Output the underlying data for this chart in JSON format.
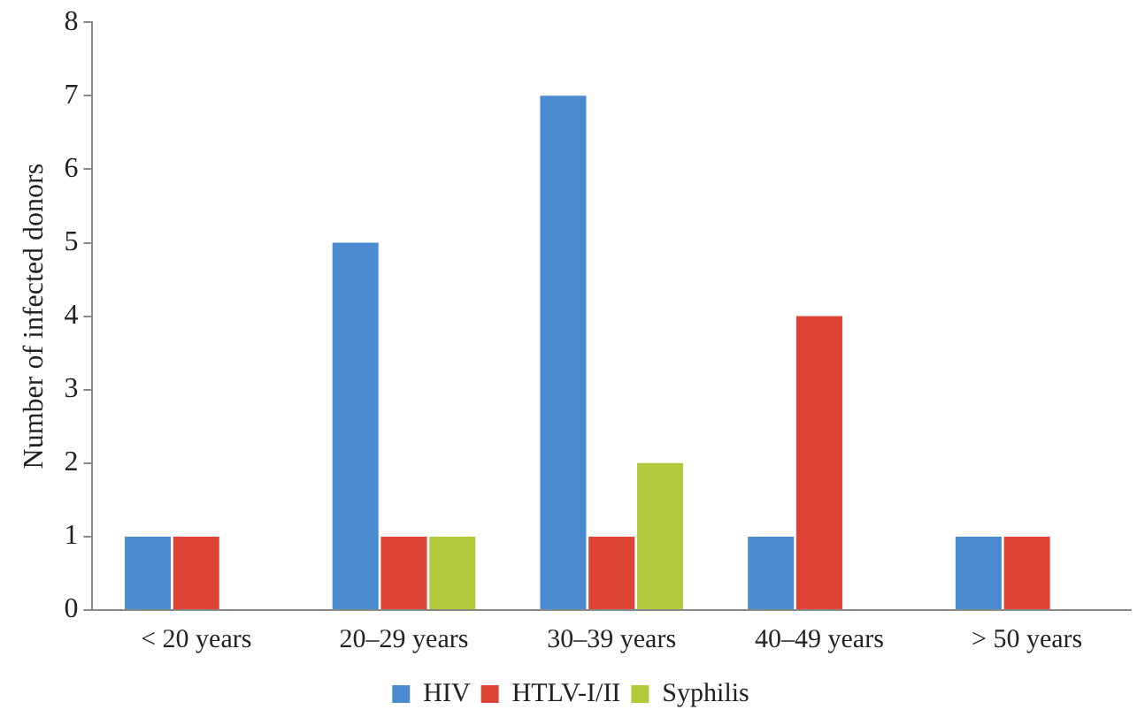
{
  "chart_data": {
    "type": "bar",
    "ylabel": "Number of infected donors",
    "categories": [
      "< 20 years",
      "20–29 years",
      "30–39 years",
      "40–49 years",
      "> 50 years"
    ],
    "series": [
      {
        "name": "HIV",
        "color": "#4a8ad0",
        "values": [
          1,
          5,
          7,
          1,
          1
        ]
      },
      {
        "name": "HTLV-I/II",
        "color": "#dd4436",
        "values": [
          1,
          1,
          1,
          4,
          1
        ]
      },
      {
        "name": "Syphilis",
        "color": "#b3c93c",
        "values": [
          0,
          1,
          2,
          0,
          0
        ]
      }
    ],
    "ylim": [
      0,
      8
    ],
    "yticks": [
      0,
      1,
      2,
      3,
      4,
      5,
      6,
      7,
      8
    ],
    "grid": false,
    "legend": "bottom"
  }
}
